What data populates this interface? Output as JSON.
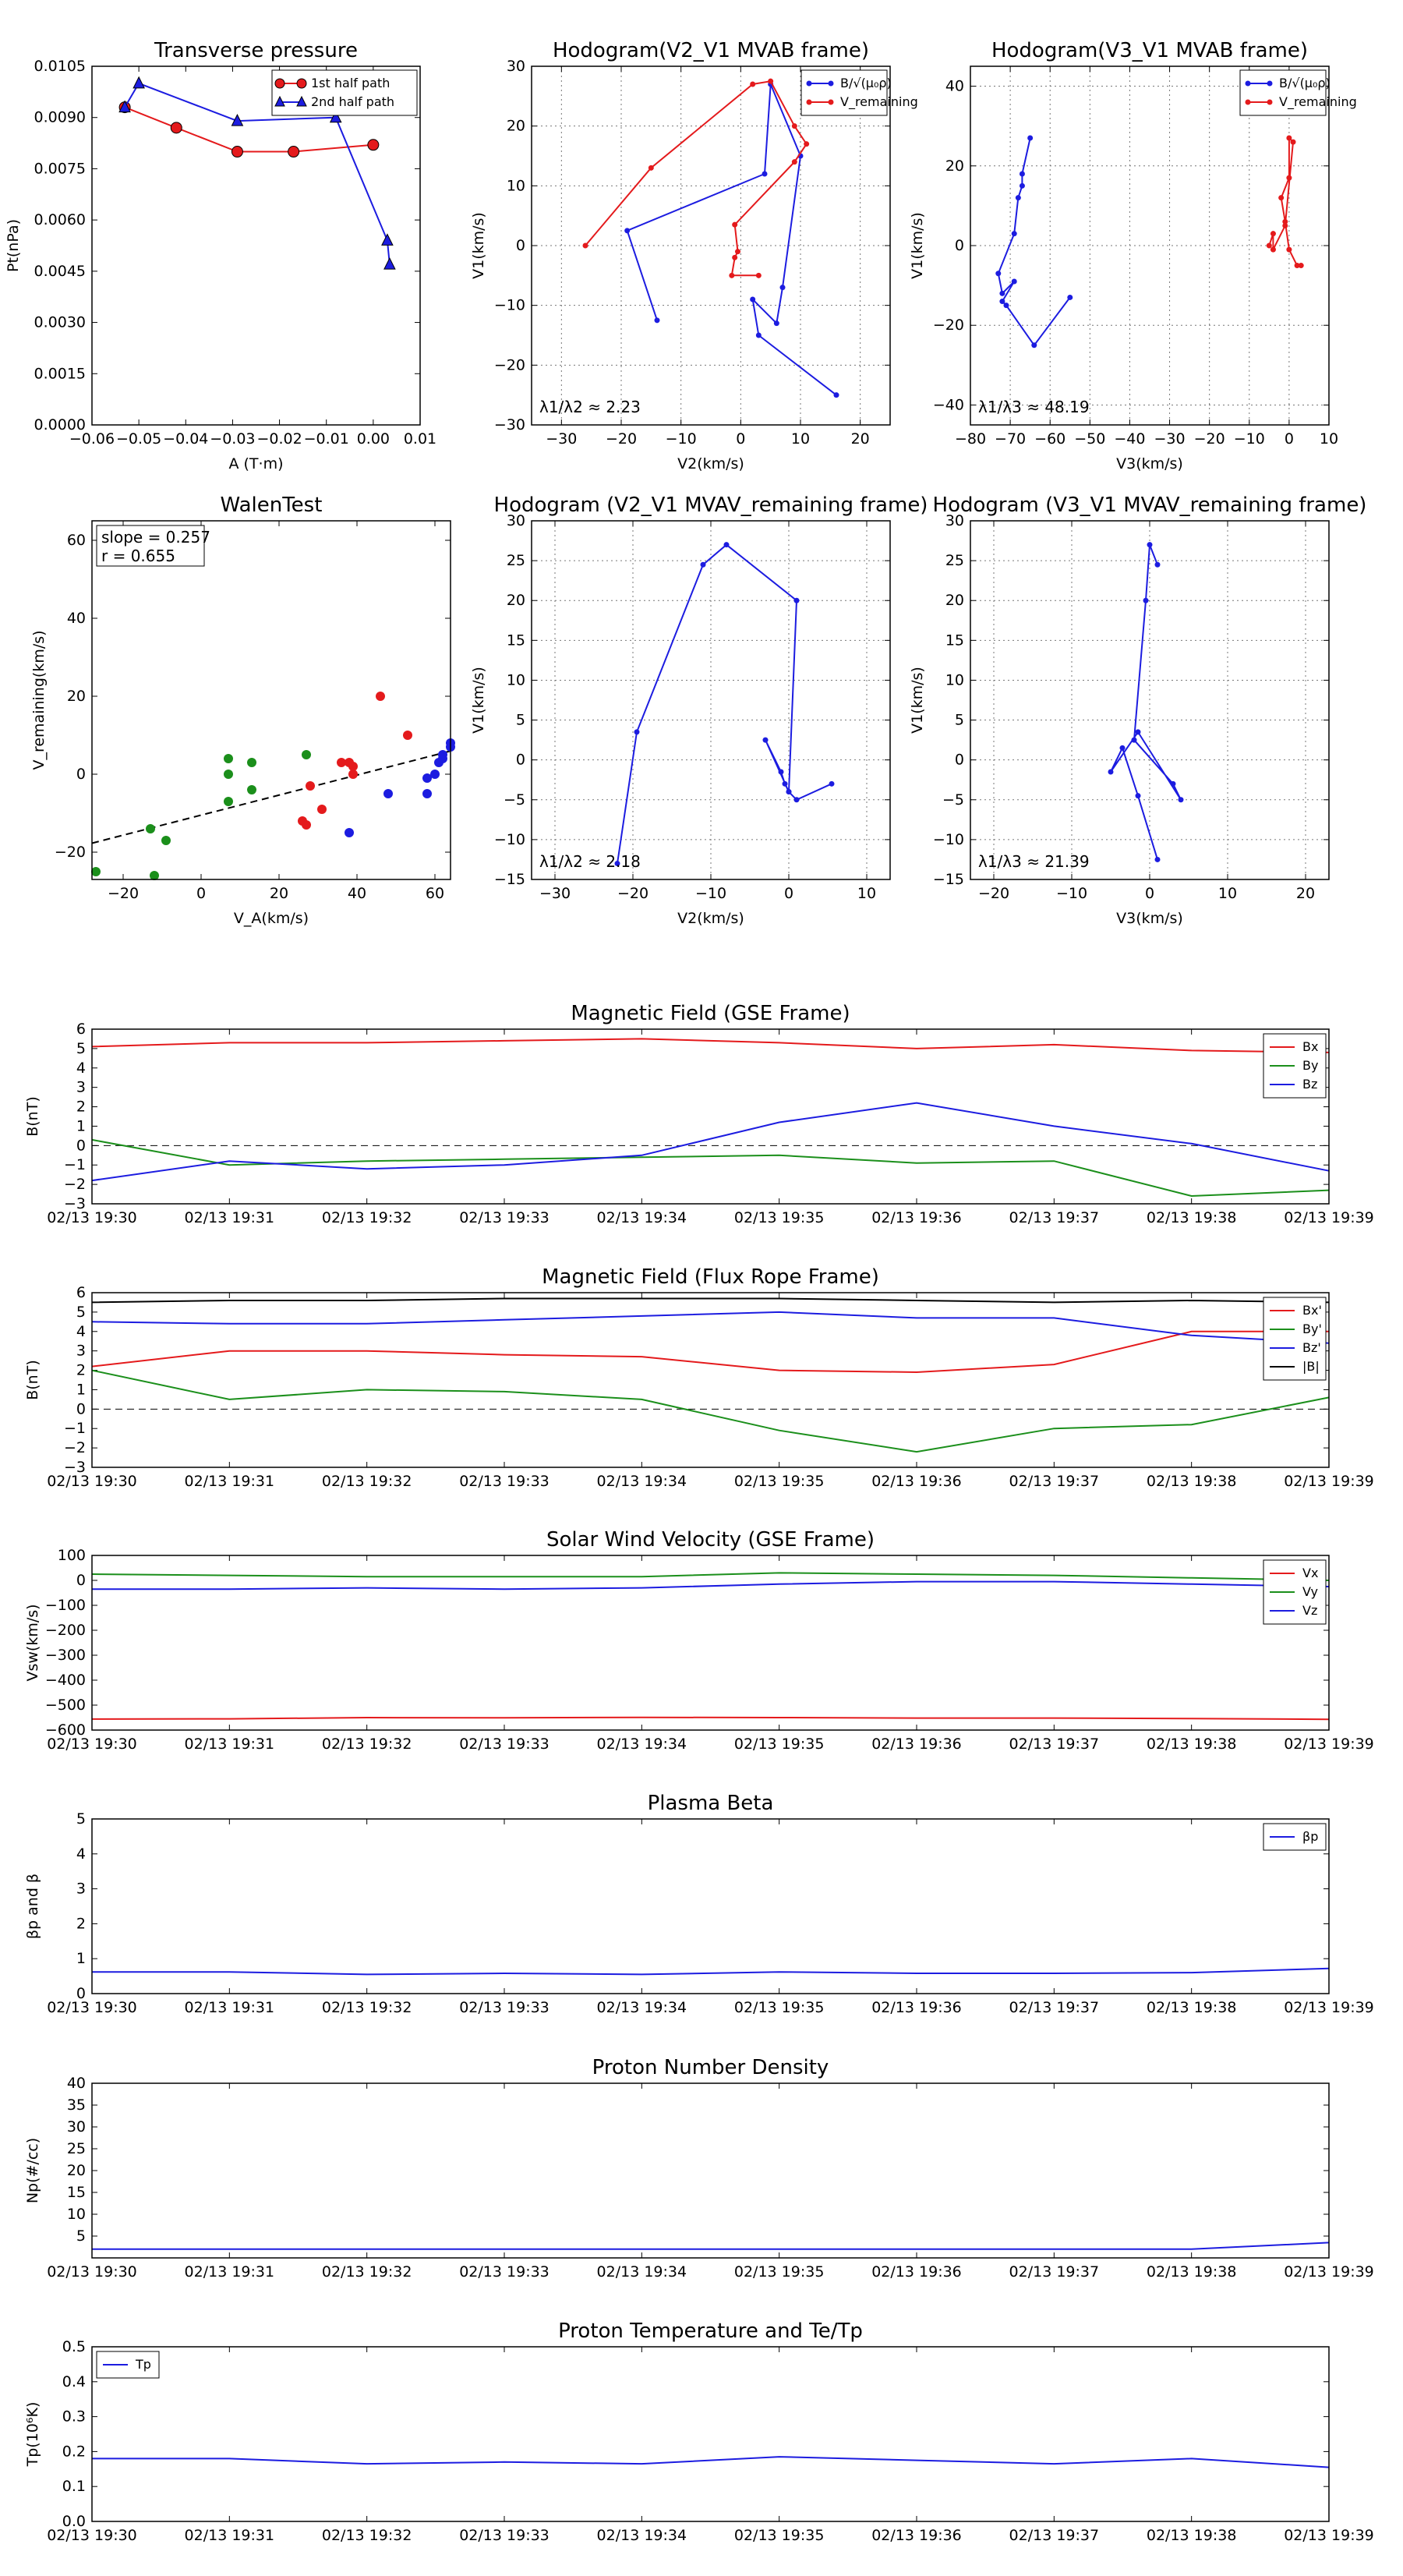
{
  "top_panels": {
    "tp": {
      "title": "Transverse pressure",
      "xlabel": "A (T·m)",
      "ylabel": "Pt(nPa)",
      "xticks": [
        "−0.06",
        "−0.05",
        "−0.04",
        "−0.03",
        "−0.02",
        "−0.01",
        "0.00",
        "0.01"
      ],
      "yticks": [
        "0.0000",
        "0.0015",
        "0.0030",
        "0.0045",
        "0.0060",
        "0.0075",
        "0.0090",
        "0.0105"
      ],
      "legend": [
        "1st half path",
        "2nd half path"
      ]
    },
    "h1": {
      "title": "Hodogram(V2_V1 MVAB frame)",
      "xlabel": "V2(km/s)",
      "ylabel": "V1(km/s)",
      "xticks": [
        "−30",
        "−20",
        "−10",
        "0",
        "10",
        "20"
      ],
      "yticks": [
        "−30",
        "−20",
        "−10",
        "0",
        "10",
        "20",
        "30"
      ],
      "legend": [
        "B/√(μ₀ρ)",
        "V_remaining"
      ],
      "annotation": "λ1/λ2 ≈ 2.23"
    },
    "h2": {
      "title": "Hodogram(V3_V1 MVAB frame)",
      "xlabel": "V3(km/s)",
      "ylabel": "V1(km/s)",
      "xticks": [
        "−80",
        "−70",
        "−60",
        "−50",
        "−40",
        "−30",
        "−20",
        "−10",
        "0",
        "10"
      ],
      "yticks": [
        "−40",
        "−20",
        "0",
        "20",
        "40"
      ],
      "legend": [
        "B/√(μ₀ρ)",
        "V_remaining"
      ],
      "annotation": "λ1/λ3 ≈ 48.19"
    },
    "walen": {
      "title": "WalenTest",
      "xlabel": "V_A(km/s)",
      "ylabel": "V_remaining(km/s)",
      "xticks": [
        "−20",
        "0",
        "20",
        "40",
        "60"
      ],
      "yticks": [
        "−20",
        "0",
        "20",
        "40",
        "60"
      ],
      "slope": "slope = 0.257",
      "r": "r = 0.655"
    },
    "h3": {
      "title": "Hodogram (V2_V1 MVAV_remaining frame)",
      "xlabel": "V2(km/s)",
      "ylabel": "V1(km/s)",
      "xticks": [
        "−30",
        "−20",
        "−10",
        "0",
        "10"
      ],
      "yticks": [
        "−15",
        "−10",
        "−5",
        "0",
        "5",
        "10",
        "15",
        "20",
        "25",
        "30"
      ],
      "annotation": "λ1/λ2 ≈ 2.18"
    },
    "h4": {
      "title": "Hodogram (V3_V1 MVAV_remaining frame)",
      "xlabel": "V3(km/s)",
      "ylabel": "V1(km/s)",
      "xticks": [
        "−20",
        "−10",
        "0",
        "10",
        "20"
      ],
      "yticks": [
        "−15",
        "−10",
        "−5",
        "0",
        "5",
        "10",
        "15",
        "20",
        "25",
        "30"
      ],
      "annotation": "λ1/λ3 ≈ 21.39"
    }
  },
  "time_axis": {
    "labels": [
      "02/13 19:30",
      "02/13 19:31",
      "02/13 19:32",
      "02/13 19:33",
      "02/13 19:34",
      "02/13 19:35",
      "02/13 19:36",
      "02/13 19:37",
      "02/13 19:38",
      "02/13 19:39"
    ]
  },
  "ts_panels": {
    "mf_gse": {
      "title": "Magnetic Field (GSE Frame)",
      "ylabel": "B(nT)",
      "yticks": [
        "−3",
        "−2",
        "−1",
        "0",
        "1",
        "2",
        "3",
        "4",
        "5",
        "6"
      ],
      "legend": [
        "Bx",
        "By",
        "Bz"
      ]
    },
    "mf_fr": {
      "title": "Magnetic Field (Flux Rope Frame)",
      "ylabel": "B(nT)",
      "yticks": [
        "−3",
        "−2",
        "−1",
        "0",
        "1",
        "2",
        "3",
        "4",
        "5",
        "6"
      ],
      "legend": [
        "Bx'",
        "By'",
        "Bz'",
        "|B|"
      ]
    },
    "sw": {
      "title": "Solar Wind Velocity (GSE Frame)",
      "ylabel": "Vsw(km/s)",
      "yticks": [
        "−600",
        "−500",
        "−400",
        "−300",
        "−200",
        "−100",
        "0",
        "100"
      ],
      "legend": [
        "Vx",
        "Vy",
        "Vz"
      ]
    },
    "beta": {
      "title": "Plasma Beta",
      "ylabel": "βp and β",
      "yticks": [
        "0",
        "1",
        "2",
        "3",
        "4",
        "5"
      ],
      "legend": [
        "βp"
      ]
    },
    "np": {
      "title": "Proton Number Density",
      "ylabel": "Np(#/cc)",
      "yticks": [
        "5",
        "10",
        "15",
        "20",
        "25",
        "30",
        "35",
        "40"
      ],
      "legend": []
    },
    "tp": {
      "title": "Proton Temperature and Te/Tp",
      "ylabel": "Tp(10⁶K)",
      "yticks": [
        "0.0",
        "0.1",
        "0.2",
        "0.3",
        "0.4",
        "0.5"
      ],
      "legend": [
        "Tp"
      ]
    }
  },
  "colors": {
    "red": "#e41a1c",
    "green": "#1b8f1b",
    "blue": "#1c1ce0",
    "black": "#000000"
  },
  "chart_data": [
    {
      "id": "tp",
      "type": "line",
      "xlim": [
        -0.06,
        0.01
      ],
      "ylim": [
        0,
        0.0105
      ],
      "series": [
        {
          "name": "1st half path",
          "color": "red",
          "marker": "circle",
          "x": [
            -0.053,
            -0.042,
            -0.029,
            -0.017,
            0.0
          ],
          "y": [
            0.0093,
            0.0087,
            0.008,
            0.008,
            0.0082
          ]
        },
        {
          "name": "2nd half path",
          "color": "blue",
          "marker": "triangle",
          "x": [
            -0.053,
            -0.05,
            -0.029,
            -0.008,
            0.003,
            0.0035
          ],
          "y": [
            0.0093,
            0.01,
            0.0089,
            0.009,
            0.0054,
            0.0047
          ]
        }
      ]
    },
    {
      "id": "h1",
      "type": "line",
      "xlim": [
        -35,
        25
      ],
      "ylim": [
        -30,
        30
      ],
      "series": [
        {
          "name": "B/√(μ₀ρ)",
          "color": "blue",
          "marker": "dot",
          "x": [
            16,
            3,
            2,
            6,
            7,
            10,
            5,
            4,
            -19,
            -14
          ],
          "y": [
            -25,
            -15,
            -9,
            -13,
            -7,
            15,
            27,
            12,
            2.5,
            -12.5
          ]
        },
        {
          "name": "V_remaining",
          "color": "red",
          "marker": "dot",
          "x": [
            -26,
            -15,
            2,
            5,
            9,
            11,
            9,
            -1,
            -0.5,
            -1,
            -1.5,
            3
          ],
          "y": [
            0,
            13,
            27,
            27.5,
            20,
            17,
            14,
            3.5,
            -1,
            -2,
            -5,
            -5
          ]
        }
      ]
    },
    {
      "id": "h2",
      "type": "line",
      "xlim": [
        -80,
        10
      ],
      "ylim": [
        -45,
        45
      ],
      "series": [
        {
          "name": "B/√(μ₀ρ)",
          "color": "blue",
          "marker": "dot",
          "x": [
            -55,
            -64,
            -71,
            -72,
            -69,
            -72,
            -73,
            -69,
            -68,
            -67,
            -67,
            -65
          ],
          "y": [
            -13,
            -25,
            -15,
            -14,
            -9,
            -12,
            -7,
            3,
            12,
            15,
            18,
            27
          ]
        },
        {
          "name": "V_remaining",
          "color": "red",
          "marker": "dot",
          "x": [
            3,
            2,
            0,
            -1,
            -2,
            0,
            0,
            1,
            -1,
            -4,
            -4,
            -5
          ],
          "y": [
            -5,
            -5,
            -1,
            6,
            12,
            17,
            27,
            26,
            5,
            -1,
            3,
            0
          ]
        }
      ]
    },
    {
      "id": "walen",
      "type": "scatter",
      "xlim": [
        -28,
        64
      ],
      "ylim": [
        -27,
        65
      ],
      "fit": {
        "slope": 0.257,
        "intercept": -10.5
      },
      "series": [
        {
          "name": "",
          "color": "green",
          "x": [
            -27,
            -13,
            -12,
            -9,
            7,
            7,
            7,
            13,
            13,
            27
          ],
          "y": [
            -25,
            -14,
            -26,
            -17,
            -7,
            0,
            4,
            -4,
            3,
            5
          ]
        },
        {
          "name": "",
          "color": "red",
          "x": [
            26,
            27,
            28,
            31,
            36,
            38,
            39,
            39,
            46,
            53
          ],
          "y": [
            -12,
            -13,
            -3,
            -9,
            3,
            3,
            0,
            2,
            20,
            10
          ]
        },
        {
          "name": "",
          "color": "blue",
          "x": [
            38,
            48,
            58,
            58,
            60,
            61,
            62,
            62,
            64,
            64
          ],
          "y": [
            -15,
            -5,
            -5,
            -1,
            0,
            3,
            4,
            5,
            7,
            8
          ]
        }
      ]
    },
    {
      "id": "h3",
      "type": "line",
      "xlim": [
        -33,
        13
      ],
      "ylim": [
        -15,
        30
      ],
      "series": [
        {
          "name": "",
          "color": "blue",
          "marker": "dot",
          "x": [
            5.5,
            1,
            0,
            -3,
            -1,
            -0.5,
            0,
            1,
            -8,
            -11,
            -19.5,
            -22
          ],
          "y": [
            -3,
            -5,
            -4,
            2.5,
            -1.5,
            -3,
            -4,
            20,
            27,
            24.5,
            3.5,
            -13
          ]
        }
      ]
    },
    {
      "id": "h4",
      "type": "line",
      "xlim": [
        -23,
        23
      ],
      "ylim": [
        -15,
        30
      ],
      "series": [
        {
          "name": "",
          "color": "blue",
          "marker": "dot",
          "x": [
            1,
            -1.5,
            -3.5,
            -5,
            -1.5,
            4,
            3,
            -2,
            -0.5,
            0,
            1
          ],
          "y": [
            -12.5,
            -4.5,
            1.5,
            -1.5,
            3.5,
            -5,
            -3,
            2.5,
            20,
            27,
            24.5
          ]
        }
      ]
    },
    {
      "id": "mf_gse",
      "type": "line",
      "x": [
        0,
        1,
        2,
        3,
        4,
        5,
        6,
        7,
        8,
        9
      ],
      "ylim": [
        -3,
        6
      ],
      "zero_line": true,
      "series": [
        {
          "name": "Bx",
          "color": "red",
          "values": [
            5.1,
            5.3,
            5.3,
            5.4,
            5.5,
            5.3,
            5.0,
            5.2,
            4.9,
            4.8
          ]
        },
        {
          "name": "By",
          "color": "green",
          "values": [
            0.3,
            -1.0,
            -0.8,
            -0.7,
            -0.6,
            -0.5,
            -0.9,
            -0.8,
            -2.6,
            -2.3
          ]
        },
        {
          "name": "Bz",
          "color": "blue",
          "values": [
            -1.8,
            -0.8,
            -1.2,
            -1.0,
            -0.5,
            1.2,
            2.2,
            1.0,
            0.1,
            -1.3
          ]
        }
      ]
    },
    {
      "id": "mf_fr",
      "type": "line",
      "x": [
        0,
        1,
        2,
        3,
        4,
        5,
        6,
        7,
        8,
        9
      ],
      "ylim": [
        -3,
        6
      ],
      "zero_line": true,
      "series": [
        {
          "name": "Bx'",
          "color": "red",
          "values": [
            2.2,
            3.0,
            3.0,
            2.8,
            2.7,
            2.0,
            1.9,
            2.3,
            4.0,
            4.0
          ]
        },
        {
          "name": "By'",
          "color": "green",
          "values": [
            2.0,
            0.5,
            1.0,
            0.9,
            0.5,
            -1.1,
            -2.2,
            -1.0,
            -0.8,
            0.6
          ]
        },
        {
          "name": "Bz'",
          "color": "blue",
          "values": [
            4.5,
            4.4,
            4.4,
            4.6,
            4.8,
            5.0,
            4.7,
            4.7,
            3.8,
            3.4
          ]
        },
        {
          "name": "|B|",
          "color": "black",
          "values": [
            5.5,
            5.6,
            5.6,
            5.7,
            5.7,
            5.7,
            5.6,
            5.5,
            5.6,
            5.5
          ]
        }
      ]
    },
    {
      "id": "sw",
      "type": "line",
      "x": [
        0,
        1,
        2,
        3,
        4,
        5,
        6,
        7,
        8,
        9
      ],
      "ylim": [
        -600,
        100
      ],
      "series": [
        {
          "name": "Vx",
          "color": "red",
          "values": [
            -556,
            -555,
            -550,
            -551,
            -549,
            -550,
            -552,
            -552,
            -554,
            -557
          ]
        },
        {
          "name": "Vy",
          "color": "green",
          "values": [
            25,
            20,
            15,
            15,
            15,
            30,
            25,
            20,
            10,
            0
          ]
        },
        {
          "name": "Vz",
          "color": "blue",
          "values": [
            -35,
            -35,
            -30,
            -35,
            -30,
            -15,
            -5,
            -5,
            -15,
            -25
          ]
        }
      ]
    },
    {
      "id": "beta",
      "type": "line",
      "x": [
        0,
        1,
        2,
        3,
        4,
        5,
        6,
        7,
        8,
        9
      ],
      "ylim": [
        0,
        5
      ],
      "series": [
        {
          "name": "βp",
          "color": "blue",
          "values": [
            0.62,
            0.62,
            0.55,
            0.58,
            0.55,
            0.62,
            0.58,
            0.58,
            0.6,
            0.72
          ]
        }
      ]
    },
    {
      "id": "np",
      "type": "line",
      "x": [
        0,
        1,
        2,
        3,
        4,
        5,
        6,
        7,
        8,
        9
      ],
      "ylim": [
        0,
        40
      ],
      "series": [
        {
          "name": "",
          "color": "blue",
          "values": [
            2.0,
            2.0,
            2.0,
            2.0,
            2.0,
            2.0,
            2.0,
            2.0,
            2.0,
            3.5
          ]
        }
      ]
    },
    {
      "id": "tp_ts",
      "type": "line",
      "x": [
        0,
        1,
        2,
        3,
        4,
        5,
        6,
        7,
        8,
        9
      ],
      "ylim": [
        0,
        0.5
      ],
      "series": [
        {
          "name": "Tp",
          "color": "blue",
          "values": [
            0.18,
            0.18,
            0.165,
            0.17,
            0.165,
            0.185,
            0.175,
            0.165,
            0.18,
            0.155
          ]
        }
      ]
    }
  ]
}
